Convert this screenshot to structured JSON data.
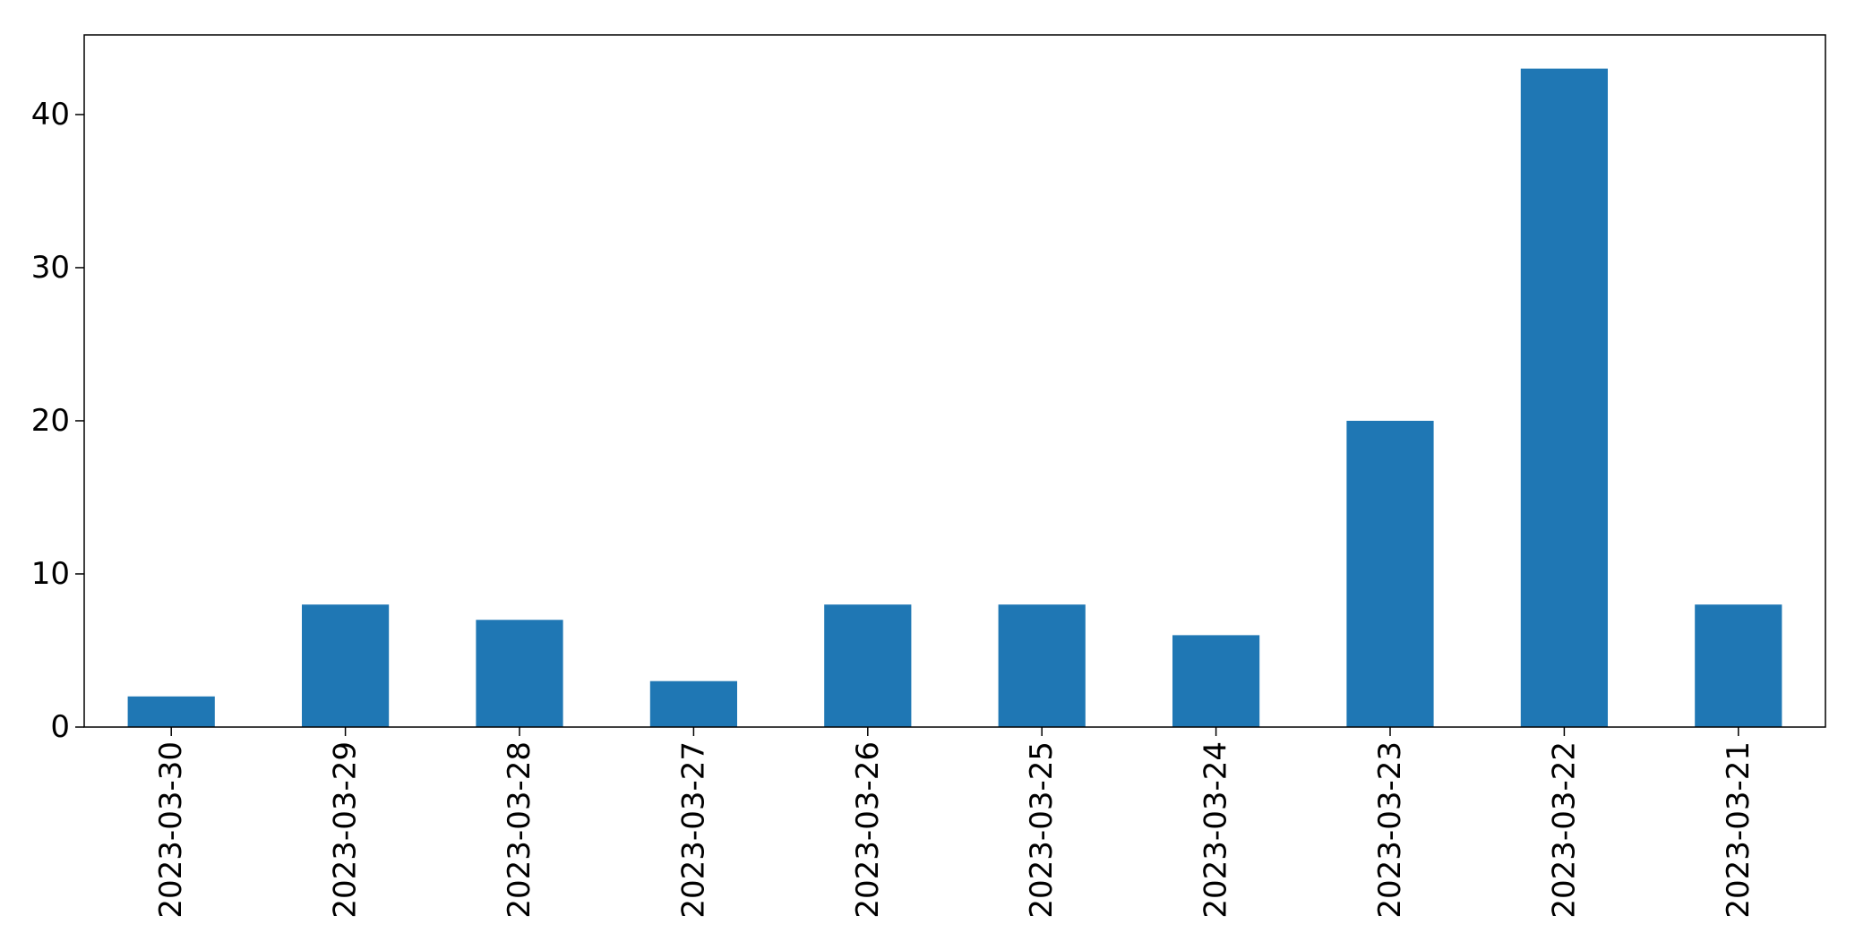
{
  "chart_data": {
    "type": "bar",
    "categories": [
      "2023-03-30",
      "2023-03-29",
      "2023-03-28",
      "2023-03-27",
      "2023-03-26",
      "2023-03-25",
      "2023-03-24",
      "2023-03-23",
      "2023-03-22",
      "2023-03-21"
    ],
    "series": [
      {
        "values": [
          2,
          8,
          7,
          3,
          8,
          8,
          6,
          20,
          43,
          8
        ]
      }
    ],
    "ylim": [
      0,
      45.2
    ],
    "yticks": [
      0,
      10,
      20,
      30,
      40
    ],
    "xlabel": "",
    "ylabel": "",
    "grid": false,
    "legend": false,
    "bar_color": "#1f77b4"
  }
}
